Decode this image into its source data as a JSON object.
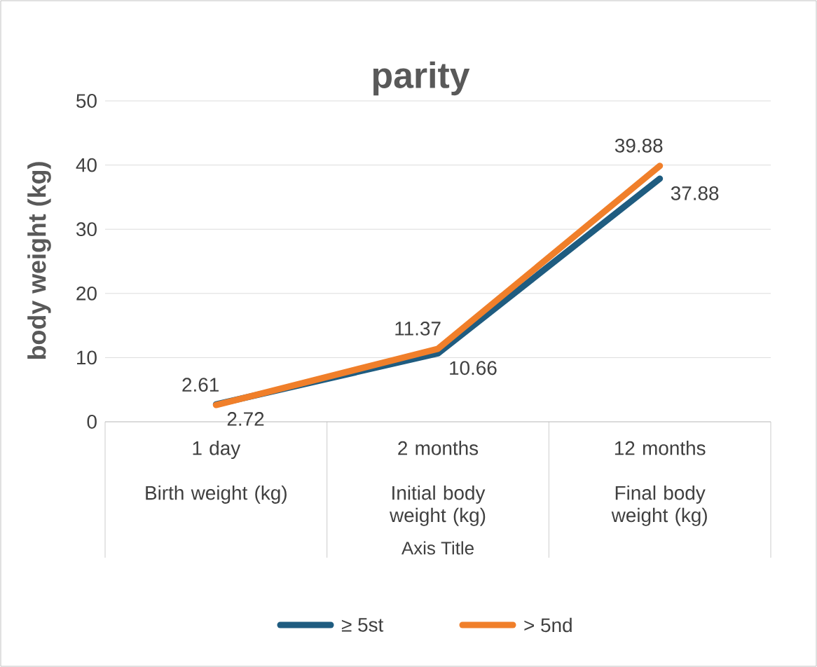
{
  "chart_data": {
    "type": "line",
    "title": "parity",
    "xlabel": "Axis Title",
    "ylabel": "body weight (kg)",
    "categories": [
      "1 day",
      "2 months",
      "12 months"
    ],
    "annotations": [
      "Birth weight (kg)",
      "Initial body weight (kg)",
      "Final body weight (kg)"
    ],
    "series": [
      {
        "name": "≥ 5st",
        "color": "#1f5c80",
        "values": [
          2.72,
          10.66,
          37.88
        ]
      },
      {
        "name": "> 5nd",
        "color": "#f07f2a",
        "values": [
          2.61,
          11.37,
          39.88
        ]
      }
    ],
    "ylim": [
      0,
      50
    ],
    "yticks": [
      0,
      10,
      20,
      30,
      40,
      50
    ],
    "grid": "y",
    "legend": "bottom",
    "data_labels": true,
    "marker": "none",
    "line_style": "solid"
  }
}
